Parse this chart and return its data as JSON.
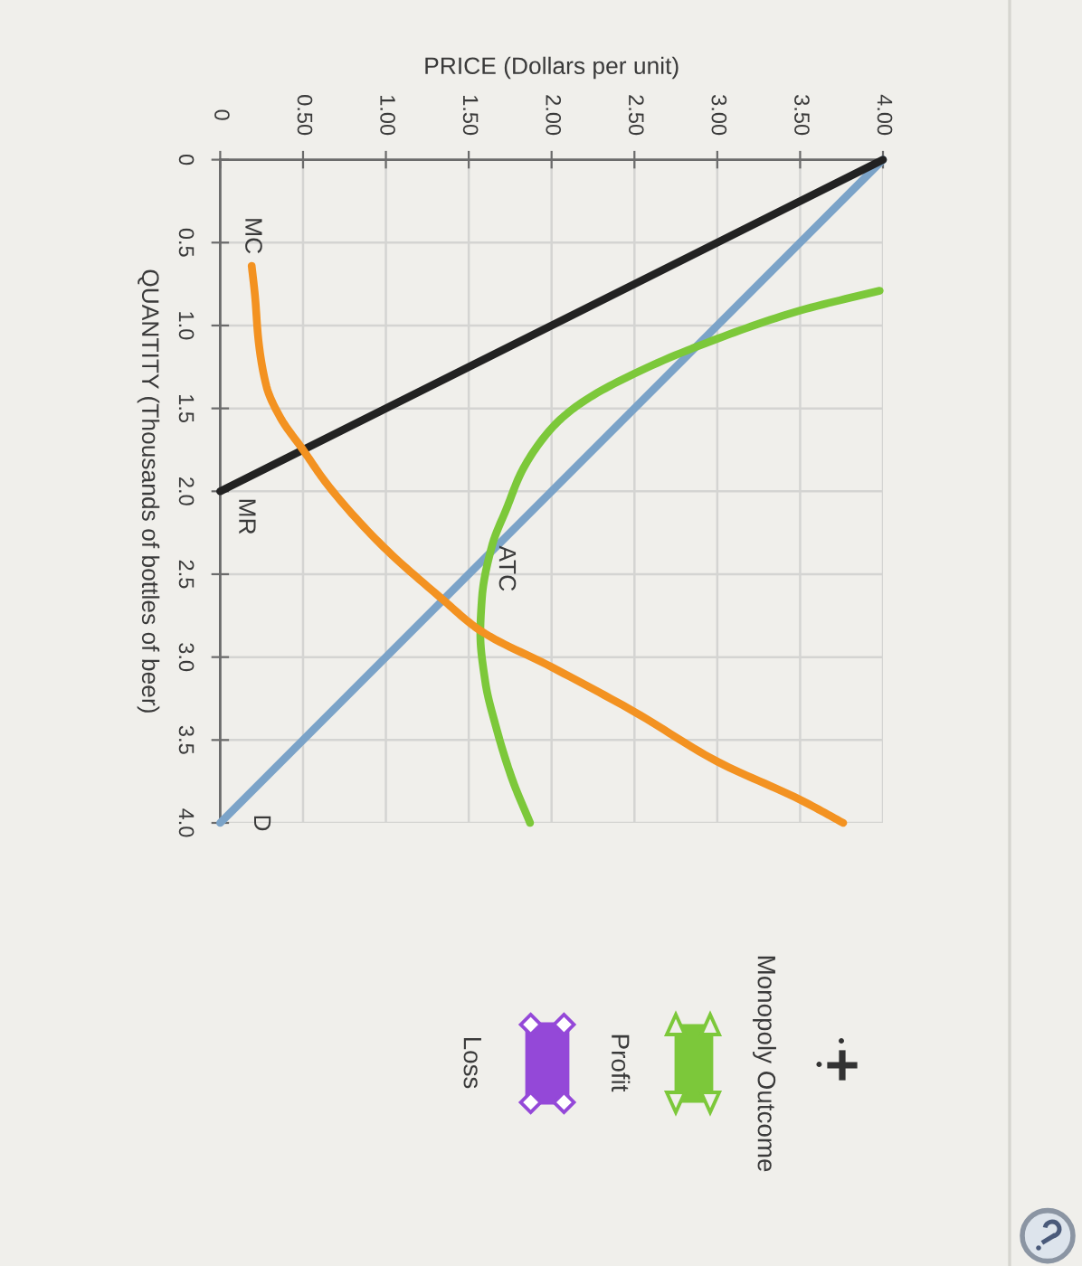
{
  "chart_data": {
    "type": "line",
    "xlabel": "PRICE (Dollars per unit)",
    "ylabel": "QUANTITY (Thousands of bottles of beer)",
    "xlim": [
      0,
      4
    ],
    "ylim": [
      4,
      0
    ],
    "xticks": [
      0,
      {
        "value": 0.5,
        "label": "0.50"
      },
      {
        "value": 1,
        "label": "1.00"
      },
      {
        "value": 1.5,
        "label": "1.50"
      },
      {
        "value": 2,
        "label": "2.00"
      },
      {
        "value": 2.5,
        "label": "2.50"
      },
      {
        "value": 3,
        "label": "3.00"
      },
      {
        "value": 3.5,
        "label": "3.50"
      },
      {
        "value": 4,
        "label": "4.00"
      }
    ],
    "yticks": [
      0,
      0.5,
      {
        "value": 1,
        "label": "1.0"
      },
      1.5,
      {
        "value": 2,
        "label": "2.0"
      },
      2.5,
      {
        "value": 3,
        "label": "3.0"
      },
      3.5,
      {
        "value": 4,
        "label": "4.0"
      }
    ],
    "grid": true,
    "series": [
      {
        "name": "D",
        "color": "#7ba3c8",
        "x": [
          0,
          4
        ],
        "values": [
          4,
          0
        ]
      },
      {
        "name": "MR",
        "color": "#222222",
        "x": [
          0,
          4
        ],
        "values": [
          2,
          0
        ]
      },
      {
        "name": "ATC",
        "color": "#7cc83a",
        "x": [
          3.98,
          3.5,
          3.0,
          2.5,
          2.16,
          2.0,
          1.82,
          1.73,
          1.64,
          1.58,
          1.57,
          1.6,
          1.67,
          1.76,
          1.87
        ],
        "values": [
          0.79,
          0.91,
          1.08,
          1.29,
          1.48,
          1.62,
          1.88,
          2.1,
          2.33,
          2.64,
          2.86,
          3.15,
          3.44,
          3.73,
          4.0
        ]
      },
      {
        "name": "MC",
        "color": "#f39221",
        "x": [
          0.19,
          0.21,
          0.23,
          0.28,
          0.36,
          0.5,
          0.64,
          0.96,
          1.34,
          1.57,
          2.0,
          2.5,
          3.0,
          3.5,
          3.76
        ],
        "values": [
          0.64,
          0.82,
          1.08,
          1.37,
          1.55,
          1.75,
          1.95,
          2.31,
          2.65,
          2.84,
          3.06,
          3.33,
          3.63,
          3.86,
          4.0
        ]
      }
    ],
    "annotations": [
      "Monopoly Outcome",
      "Profit",
      "Loss"
    ]
  }
}
